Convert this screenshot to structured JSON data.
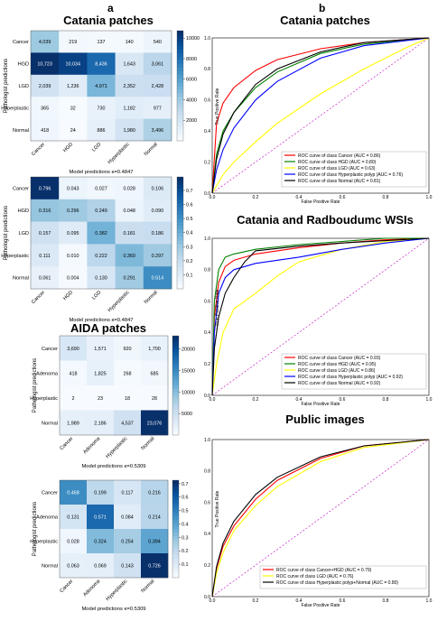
{
  "panels": {
    "a": "a",
    "b": "b"
  },
  "titles": {
    "catania_patches_a": "Catania patches",
    "aida_patches": "AIDA patches",
    "catania_patches_b": "Catania patches",
    "catania_radboud": "Catania and Radboudumc WSIs",
    "public_images": "Public images"
  },
  "colors": {
    "cancer": "#ff0000",
    "hgd": "#008000",
    "lgd": "#ffff00",
    "hyper": "#0000ff",
    "normal": "#000000",
    "diag": "#bf00bf",
    "cmap_low": "#f7fbff",
    "cmap_high": "#08306b"
  },
  "chart_data": [
    {
      "id": "cm1",
      "type": "heatmap",
      "xlabel": "Model predictions κ=0.4847",
      "ylabel": "Pathologist predictions",
      "x_labels": [
        "Cancer",
        "HGD",
        "LGD",
        "Hyperplastic",
        "Normal"
      ],
      "y_labels": [
        "Cancer",
        "HGD",
        "LGD",
        "Hyperplastic",
        "Normal"
      ],
      "values": [
        [
          4039,
          219,
          137,
          140,
          540
        ],
        [
          10723,
          10034,
          8436,
          1643,
          3061
        ],
        [
          2039,
          1236,
          4971,
          2352,
          2428
        ],
        [
          365,
          32,
          730,
          1182,
          977
        ],
        [
          418,
          24,
          886,
          1980,
          3496
        ]
      ],
      "cell_text": [
        [
          "4,039",
          "219",
          "137",
          "140",
          "540"
        ],
        [
          "10,723",
          "10,034",
          "8,436",
          "1,643",
          "3,061"
        ],
        [
          "2,039",
          "1,236",
          "4,971",
          "2,352",
          "2,428"
        ],
        [
          "365",
          "32",
          "730",
          "1,182",
          "977"
        ],
        [
          "418",
          "24",
          "886",
          "1,980",
          "3,496"
        ]
      ],
      "vmin": 0,
      "vmax": 10723,
      "colorbar_ticks": [
        2000,
        4000,
        6000,
        8000,
        10000
      ]
    },
    {
      "id": "cm2",
      "type": "heatmap",
      "xlabel": "Model predictions κ=0.4847",
      "ylabel": "Pathologist predictions",
      "x_labels": [
        "Cancer",
        "HGD",
        "LGD",
        "Hyperplastic",
        "Normal"
      ],
      "y_labels": [
        "Cancer",
        "HGD",
        "LGD",
        "Hyperplastic",
        "Normal"
      ],
      "values": [
        [
          0.796,
          0.043,
          0.027,
          0.028,
          0.106
        ],
        [
          0.316,
          0.296,
          0.249,
          0.048,
          0.09
        ],
        [
          0.157,
          0.095,
          0.382,
          0.181,
          0.186
        ],
        [
          0.111,
          0.01,
          0.222,
          0.36,
          0.297
        ],
        [
          0.061,
          0.004,
          0.13,
          0.291,
          0.514
        ]
      ],
      "cell_text": [
        [
          "0.796",
          "0.043",
          "0.027",
          "0.028",
          "0.106"
        ],
        [
          "0.316",
          "0.296",
          "0.249",
          "0.048",
          "0.090"
        ],
        [
          "0.157",
          "0.095",
          "0.382",
          "0.181",
          "0.186"
        ],
        [
          "0.111",
          "0.010",
          "0.222",
          "0.360",
          "0.297"
        ],
        [
          "0.061",
          "0.004",
          "0.130",
          "0.291",
          "0.514"
        ]
      ],
      "vmin": 0,
      "vmax": 0.796,
      "colorbar_ticks": [
        0.1,
        0.2,
        0.3,
        0.4,
        0.5,
        0.6,
        0.7
      ]
    },
    {
      "id": "cm3",
      "type": "heatmap",
      "xlabel": "Model predictions κ=0.5309",
      "ylabel": "Pathologist predictions",
      "x_labels": [
        "Cancer",
        "Adenoma",
        "Hyperplastic",
        "Normal"
      ],
      "y_labels": [
        "Cancer",
        "Adenoma",
        "Hyperplastic",
        "Normal"
      ],
      "values": [
        [
          3690,
          1571,
          920,
          1700
        ],
        [
          418,
          1825,
          268,
          685
        ],
        [
          2,
          23,
          18,
          28
        ],
        [
          1989,
          2186,
          4537,
          23076
        ]
      ],
      "cell_text": [
        [
          "3,690",
          "1,571",
          "920",
          "1,700"
        ],
        [
          "418",
          "1,825",
          "268",
          "685"
        ],
        [
          "2",
          "23",
          "18",
          "28"
        ],
        [
          "1,989",
          "2,186",
          "4,537",
          "23,076"
        ]
      ],
      "vmin": 0,
      "vmax": 23076,
      "colorbar_ticks": [
        5000,
        10000,
        15000,
        20000
      ]
    },
    {
      "id": "cm4",
      "type": "heatmap",
      "xlabel": "Model predictions κ=0.5309",
      "ylabel": "Pathologist predictions",
      "x_labels": [
        "Cancer",
        "Adenoma",
        "Hyperplastic",
        "Normal"
      ],
      "y_labels": [
        "Cancer",
        "Adenoma",
        "Hyperplastic",
        "Normal"
      ],
      "values": [
        [
          0.468,
          0.199,
          0.117,
          0.216
        ],
        [
          0.131,
          0.571,
          0.084,
          0.214
        ],
        [
          0.028,
          0.324,
          0.254,
          0.394
        ],
        [
          0.063,
          0.069,
          0.143,
          0.726
        ]
      ],
      "cell_text": [
        [
          "0.468",
          "0.199",
          "0.117",
          "0.216"
        ],
        [
          "0.131",
          "0.571",
          "0.084",
          "0.214"
        ],
        [
          "0.028",
          "0.324",
          "0.254",
          "0.394"
        ],
        [
          "0.063",
          "0.069",
          "0.143",
          "0.726"
        ]
      ],
      "vmin": 0,
      "vmax": 0.726,
      "colorbar_ticks": [
        0.1,
        0.2,
        0.3,
        0.4,
        0.5,
        0.6,
        0.7
      ]
    },
    {
      "id": "roc1",
      "type": "line",
      "xlabel": "False Positive Rate",
      "ylabel": "True Positive Rate",
      "xlim": [
        0,
        1
      ],
      "ylim": [
        0,
        1
      ],
      "x_ticks": [
        "0.0",
        "0.2",
        "0.4",
        "0.6",
        "0.8",
        "1.0"
      ],
      "y_ticks": [
        "0.0",
        "0.2",
        "0.4",
        "0.6",
        "0.8",
        "1.0"
      ],
      "legend": "bottom-right",
      "series": [
        {
          "name": "ROC curve of class Cancer (AUC = 0.86)",
          "color": "#ff0000",
          "x": [
            0,
            0.02,
            0.05,
            0.1,
            0.2,
            0.3,
            0.5,
            0.7,
            1
          ],
          "y": [
            0,
            0.45,
            0.58,
            0.68,
            0.79,
            0.86,
            0.93,
            0.97,
            1
          ]
        },
        {
          "name": "ROC curve of class HGD (AUC = 0.80)",
          "color": "#008000",
          "x": [
            0,
            0.02,
            0.05,
            0.1,
            0.2,
            0.3,
            0.5,
            0.7,
            1
          ],
          "y": [
            0,
            0.25,
            0.4,
            0.52,
            0.68,
            0.78,
            0.9,
            0.96,
            1
          ]
        },
        {
          "name": "ROC curve of class LGD (AUC = 0.63)",
          "color": "#ffff00",
          "x": [
            0,
            0.05,
            0.1,
            0.2,
            0.3,
            0.5,
            0.7,
            0.9,
            1
          ],
          "y": [
            0,
            0.12,
            0.2,
            0.33,
            0.45,
            0.64,
            0.8,
            0.94,
            1
          ]
        },
        {
          "name": "ROC curve of class Hyperplastic polyp (AUC = 0.76)",
          "color": "#0000ff",
          "x": [
            0,
            0.02,
            0.05,
            0.1,
            0.2,
            0.3,
            0.5,
            0.7,
            1
          ],
          "y": [
            0,
            0.15,
            0.28,
            0.42,
            0.6,
            0.72,
            0.87,
            0.95,
            1
          ]
        },
        {
          "name": "ROC curve of class Normal (AUC = 0.81)",
          "color": "#000000",
          "x": [
            0,
            0.02,
            0.05,
            0.1,
            0.2,
            0.3,
            0.5,
            0.7,
            1
          ],
          "y": [
            0,
            0.22,
            0.38,
            0.52,
            0.7,
            0.8,
            0.91,
            0.97,
            1
          ]
        }
      ]
    },
    {
      "id": "roc2",
      "type": "line",
      "xlabel": "False Positive Rate",
      "ylabel": "True Positive Rate",
      "xlim": [
        0,
        1
      ],
      "ylim": [
        0,
        1
      ],
      "x_ticks": [
        "0.0",
        "0.2",
        "0.4",
        "0.6",
        "0.8",
        "1.0"
      ],
      "y_ticks": [
        "0.0",
        "0.2",
        "0.4",
        "0.6",
        "0.8",
        "1.0"
      ],
      "legend": "bottom-right",
      "series": [
        {
          "name": "ROC curve of class Cancer (AUC = 0.93)",
          "color": "#ff0000",
          "x": [
            0,
            0.01,
            0.03,
            0.06,
            0.1,
            0.2,
            0.4,
            0.6,
            0.8,
            1
          ],
          "y": [
            0,
            0.5,
            0.72,
            0.82,
            0.86,
            0.9,
            0.94,
            0.97,
            0.99,
            1
          ]
        },
        {
          "name": "ROC curve of class HGD (AUC = 0.95)",
          "color": "#008000",
          "x": [
            0,
            0.01,
            0.03,
            0.06,
            0.1,
            0.2,
            0.4,
            0.6,
            0.8,
            1
          ],
          "y": [
            0,
            0.6,
            0.8,
            0.88,
            0.9,
            0.93,
            0.96,
            0.98,
            1,
            1
          ]
        },
        {
          "name": "ROC curve of class LGD (AUC = 0.86)",
          "color": "#ffff00",
          "x": [
            0,
            0.02,
            0.05,
            0.1,
            0.2,
            0.3,
            0.4,
            0.6,
            0.8,
            1
          ],
          "y": [
            0,
            0.2,
            0.4,
            0.55,
            0.65,
            0.76,
            0.85,
            0.93,
            0.98,
            1
          ]
        },
        {
          "name": "ROC curve of class Hyperplastic polyp (AUC = 0.92)",
          "color": "#0000ff",
          "x": [
            0,
            0.01,
            0.03,
            0.06,
            0.1,
            0.2,
            0.4,
            0.6,
            0.8,
            1
          ],
          "y": [
            0,
            0.4,
            0.65,
            0.75,
            0.8,
            0.84,
            0.88,
            0.93,
            0.97,
            1
          ]
        },
        {
          "name": "ROC curve of class Normal (AUC = 0.92)",
          "color": "#000000",
          "x": [
            0,
            0.01,
            0.03,
            0.06,
            0.1,
            0.15,
            0.2,
            0.4,
            0.6,
            1
          ],
          "y": [
            0,
            0.3,
            0.5,
            0.65,
            0.75,
            0.85,
            0.92,
            0.95,
            0.97,
            1
          ]
        }
      ]
    },
    {
      "id": "roc3",
      "type": "line",
      "xlabel": "False Positive Rate",
      "ylabel": "True Positive Rate",
      "xlim": [
        0,
        1
      ],
      "ylim": [
        0,
        1
      ],
      "x_ticks": [
        "0.0",
        "0.2",
        "0.4",
        "0.6",
        "0.8",
        "1.0"
      ],
      "y_ticks": [
        "0.0",
        "0.2",
        "0.4",
        "0.6",
        "0.8",
        "1.0"
      ],
      "legend": "bottom-right",
      "series": [
        {
          "name": "ROC curve of class Cancer+HGD (AUC = 0.79)",
          "color": "#ff0000",
          "x": [
            0,
            0.02,
            0.05,
            0.1,
            0.2,
            0.3,
            0.5,
            0.7,
            1
          ],
          "y": [
            0,
            0.18,
            0.32,
            0.45,
            0.62,
            0.74,
            0.88,
            0.96,
            1
          ]
        },
        {
          "name": "ROC curve of class LGD (AUC = 0.76)",
          "color": "#ffff00",
          "x": [
            0,
            0.02,
            0.05,
            0.1,
            0.2,
            0.3,
            0.5,
            0.7,
            1
          ],
          "y": [
            0,
            0.15,
            0.28,
            0.42,
            0.58,
            0.7,
            0.86,
            0.95,
            1
          ]
        },
        {
          "name": "ROC curve of class Hyperplastic polyp+Normal (AUC = 0.80)",
          "color": "#000000",
          "x": [
            0,
            0.02,
            0.05,
            0.1,
            0.2,
            0.3,
            0.5,
            0.7,
            1
          ],
          "y": [
            0,
            0.19,
            0.34,
            0.48,
            0.65,
            0.76,
            0.89,
            0.96,
            1
          ]
        }
      ]
    }
  ]
}
